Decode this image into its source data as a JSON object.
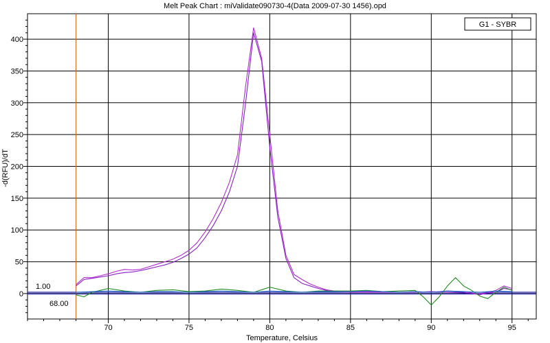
{
  "chart_data": {
    "type": "line",
    "title": "Melt Peak Chart : miValidate090730-4(Data 2009-07-30 1456).opd",
    "xlabel": "Temperature, Celsius",
    "ylabel": "-d(RFU)/dT",
    "xlim": [
      65,
      96.5
    ],
    "ylim": [
      -40,
      440
    ],
    "x_ticks": [
      70,
      75,
      80,
      85,
      90,
      95
    ],
    "y_ticks": [
      0,
      50,
      100,
      150,
      200,
      250,
      300,
      350,
      400
    ],
    "grid": true,
    "legend": {
      "label": "G1 - SYBR",
      "position": "top-right"
    },
    "threshold": {
      "value": 1.0,
      "label": "1.00",
      "color": "#1a1aa6"
    },
    "start_marker": {
      "value": 68.0,
      "label": "68.00",
      "color": "#d2691e"
    },
    "series": [
      {
        "color": "#8a1fc8",
        "x": [
          68,
          68.5,
          69,
          69.5,
          70,
          70.5,
          71,
          71.5,
          72,
          72.5,
          73,
          73.5,
          74,
          74.5,
          75,
          75.5,
          76,
          76.5,
          77,
          77.5,
          78,
          78.5,
          79,
          79.5,
          80,
          80.5,
          81,
          81.5,
          82,
          82.5,
          83,
          83.5,
          84,
          85,
          86,
          87,
          88,
          89,
          90,
          91,
          92,
          93,
          94,
          94.5,
          95
        ],
        "y": [
          12,
          22,
          24,
          26,
          28,
          31,
          33,
          34,
          36,
          39,
          42,
          45,
          49,
          55,
          62,
          72,
          88,
          107,
          130,
          160,
          200,
          298,
          410,
          365,
          230,
          120,
          55,
          25,
          16,
          12,
          8,
          5,
          3,
          2,
          2,
          2,
          2,
          2,
          3,
          2,
          1,
          0,
          2,
          8,
          6
        ]
      },
      {
        "color": "#b02ad0",
        "x": [
          68,
          68.5,
          69,
          69.5,
          70,
          70.5,
          71,
          71.5,
          72,
          72.5,
          73,
          73.5,
          74,
          74.5,
          75,
          75.5,
          76,
          76.5,
          77,
          77.5,
          78,
          78.5,
          79,
          79.5,
          80,
          80.5,
          81,
          81.5,
          82,
          82.5,
          83,
          83.5,
          84,
          85,
          86,
          87,
          88,
          89,
          90,
          91,
          92,
          93,
          94,
          94.5,
          95
        ],
        "y": [
          14,
          25,
          25,
          28,
          31,
          35,
          38,
          37,
          38,
          42,
          46,
          50,
          54,
          60,
          68,
          80,
          97,
          118,
          143,
          175,
          218,
          325,
          418,
          370,
          250,
          130,
          60,
          30,
          22,
          15,
          10,
          6,
          4,
          3,
          3,
          3,
          2,
          3,
          2,
          4,
          3,
          -2,
          5,
          12,
          8
        ]
      },
      {
        "color": "#1c8a1c",
        "x": [
          68,
          68.5,
          69,
          69.5,
          70,
          71,
          72,
          73,
          74,
          75,
          76,
          77,
          78,
          79,
          80,
          81,
          82,
          83,
          84,
          85,
          86,
          87,
          88,
          89,
          89.5,
          90,
          90.5,
          91,
          91.5,
          92,
          92.5,
          93,
          93.5,
          94,
          94.5,
          95
        ],
        "y": [
          -2,
          -5,
          2,
          5,
          8,
          4,
          2,
          5,
          6,
          3,
          4,
          7,
          5,
          2,
          10,
          4,
          2,
          4,
          4,
          4,
          5,
          3,
          4,
          5,
          -5,
          -18,
          -5,
          12,
          25,
          12,
          5,
          -4,
          -8,
          2,
          10,
          5
        ]
      },
      {
        "color": "#2a6fd0",
        "x": [
          68,
          69,
          70,
          71,
          72,
          73,
          74,
          75,
          76,
          77,
          78,
          79,
          80,
          81,
          82,
          83,
          84,
          85,
          86,
          87,
          88,
          89,
          90,
          91,
          92,
          93,
          94,
          95
        ],
        "y": [
          2,
          3,
          4,
          3,
          2,
          3,
          3,
          2,
          3,
          4,
          3,
          2,
          4,
          3,
          2,
          3,
          3,
          3,
          4,
          3,
          2,
          3,
          2,
          4,
          3,
          2,
          4,
          3
        ]
      }
    ]
  }
}
